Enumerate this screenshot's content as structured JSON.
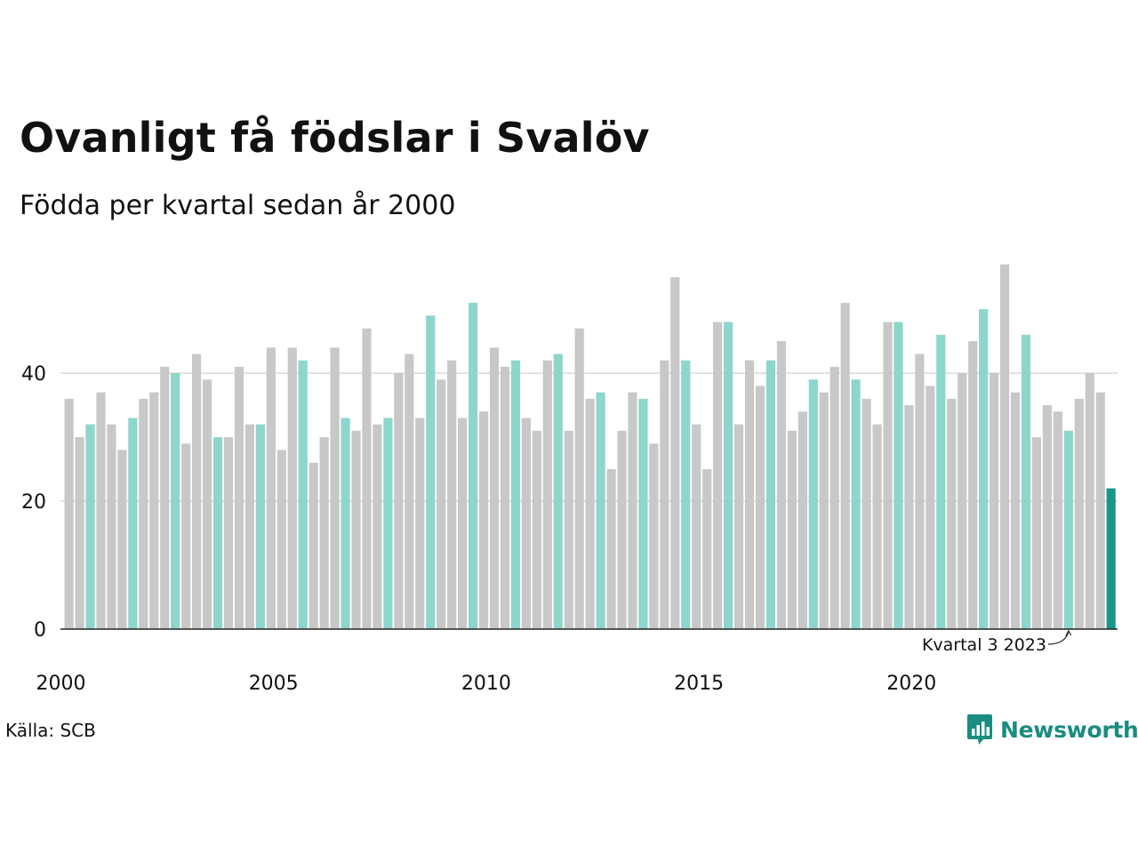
{
  "title": "Ovanligt få födslar i Svalöv",
  "subtitle": "Födda per kvartal sedan år 2000",
  "source": "Källa: SCB",
  "brand": "Newsworthy",
  "colors": {
    "default": "#c8c8c8",
    "same_quarter": "#8dd6cc",
    "current": "#1a9688",
    "grid": "#e2e2e2",
    "axis": "#222222",
    "brand": "#1a8c80"
  },
  "chart_data": {
    "type": "bar",
    "x_start": "2000 Q1",
    "x_tick_labels": [
      "2000",
      "2005",
      "2010",
      "2015",
      "2020"
    ],
    "y_ticks": [
      0,
      20,
      40
    ],
    "ylim": [
      0,
      60
    ],
    "grid": true,
    "highlight_quarter": 3,
    "annotation": "Kvartal 3 2023",
    "values": [
      36,
      30,
      32,
      37,
      32,
      28,
      33,
      36,
      37,
      41,
      40,
      29,
      43,
      39,
      30,
      30,
      41,
      32,
      32,
      44,
      28,
      44,
      42,
      26,
      30,
      44,
      33,
      31,
      47,
      32,
      33,
      40,
      43,
      33,
      49,
      39,
      42,
      33,
      51,
      34,
      44,
      41,
      42,
      33,
      31,
      42,
      43,
      31,
      47,
      36,
      37,
      25,
      31,
      37,
      36,
      29,
      42,
      55,
      42,
      32,
      25,
      48,
      48,
      32,
      42,
      38,
      42,
      45,
      31,
      34,
      39,
      37,
      41,
      51,
      39,
      36,
      32,
      48,
      48,
      35,
      43,
      38,
      46,
      36,
      40,
      45,
      50,
      40,
      57,
      37,
      46,
      30,
      35,
      34,
      31,
      36,
      40,
      37,
      22
    ]
  }
}
